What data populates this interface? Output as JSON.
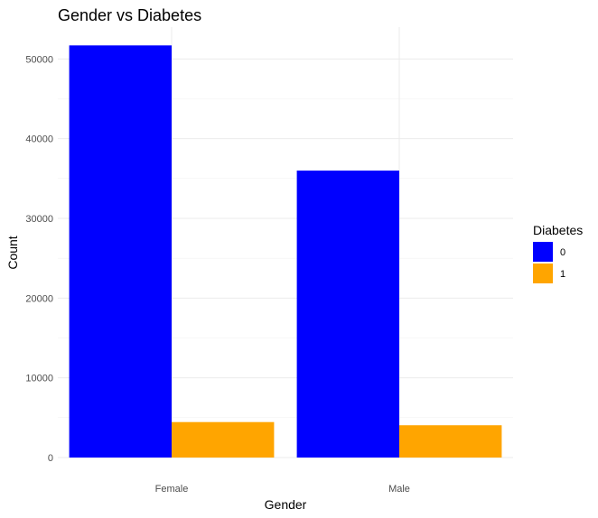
{
  "chart_data": {
    "type": "bar",
    "title": "Gender vs Diabetes",
    "xlabel": "Gender",
    "ylabel": "Count",
    "categories": [
      "Female",
      "Male"
    ],
    "series": [
      {
        "name": "0",
        "color": "#0000FF",
        "values": [
          51700,
          36000
        ]
      },
      {
        "name": "1",
        "color": "#FFA500",
        "values": [
          4450,
          4050
        ]
      }
    ],
    "ylim": [
      0,
      54000
    ],
    "yticks": [
      0,
      10000,
      20000,
      30000,
      40000,
      50000
    ],
    "ytick_labels": [
      "0",
      "10000",
      "20000",
      "30000",
      "40000",
      "50000"
    ],
    "legend": {
      "title": "Diabetes",
      "position": "right"
    },
    "grid": true
  }
}
